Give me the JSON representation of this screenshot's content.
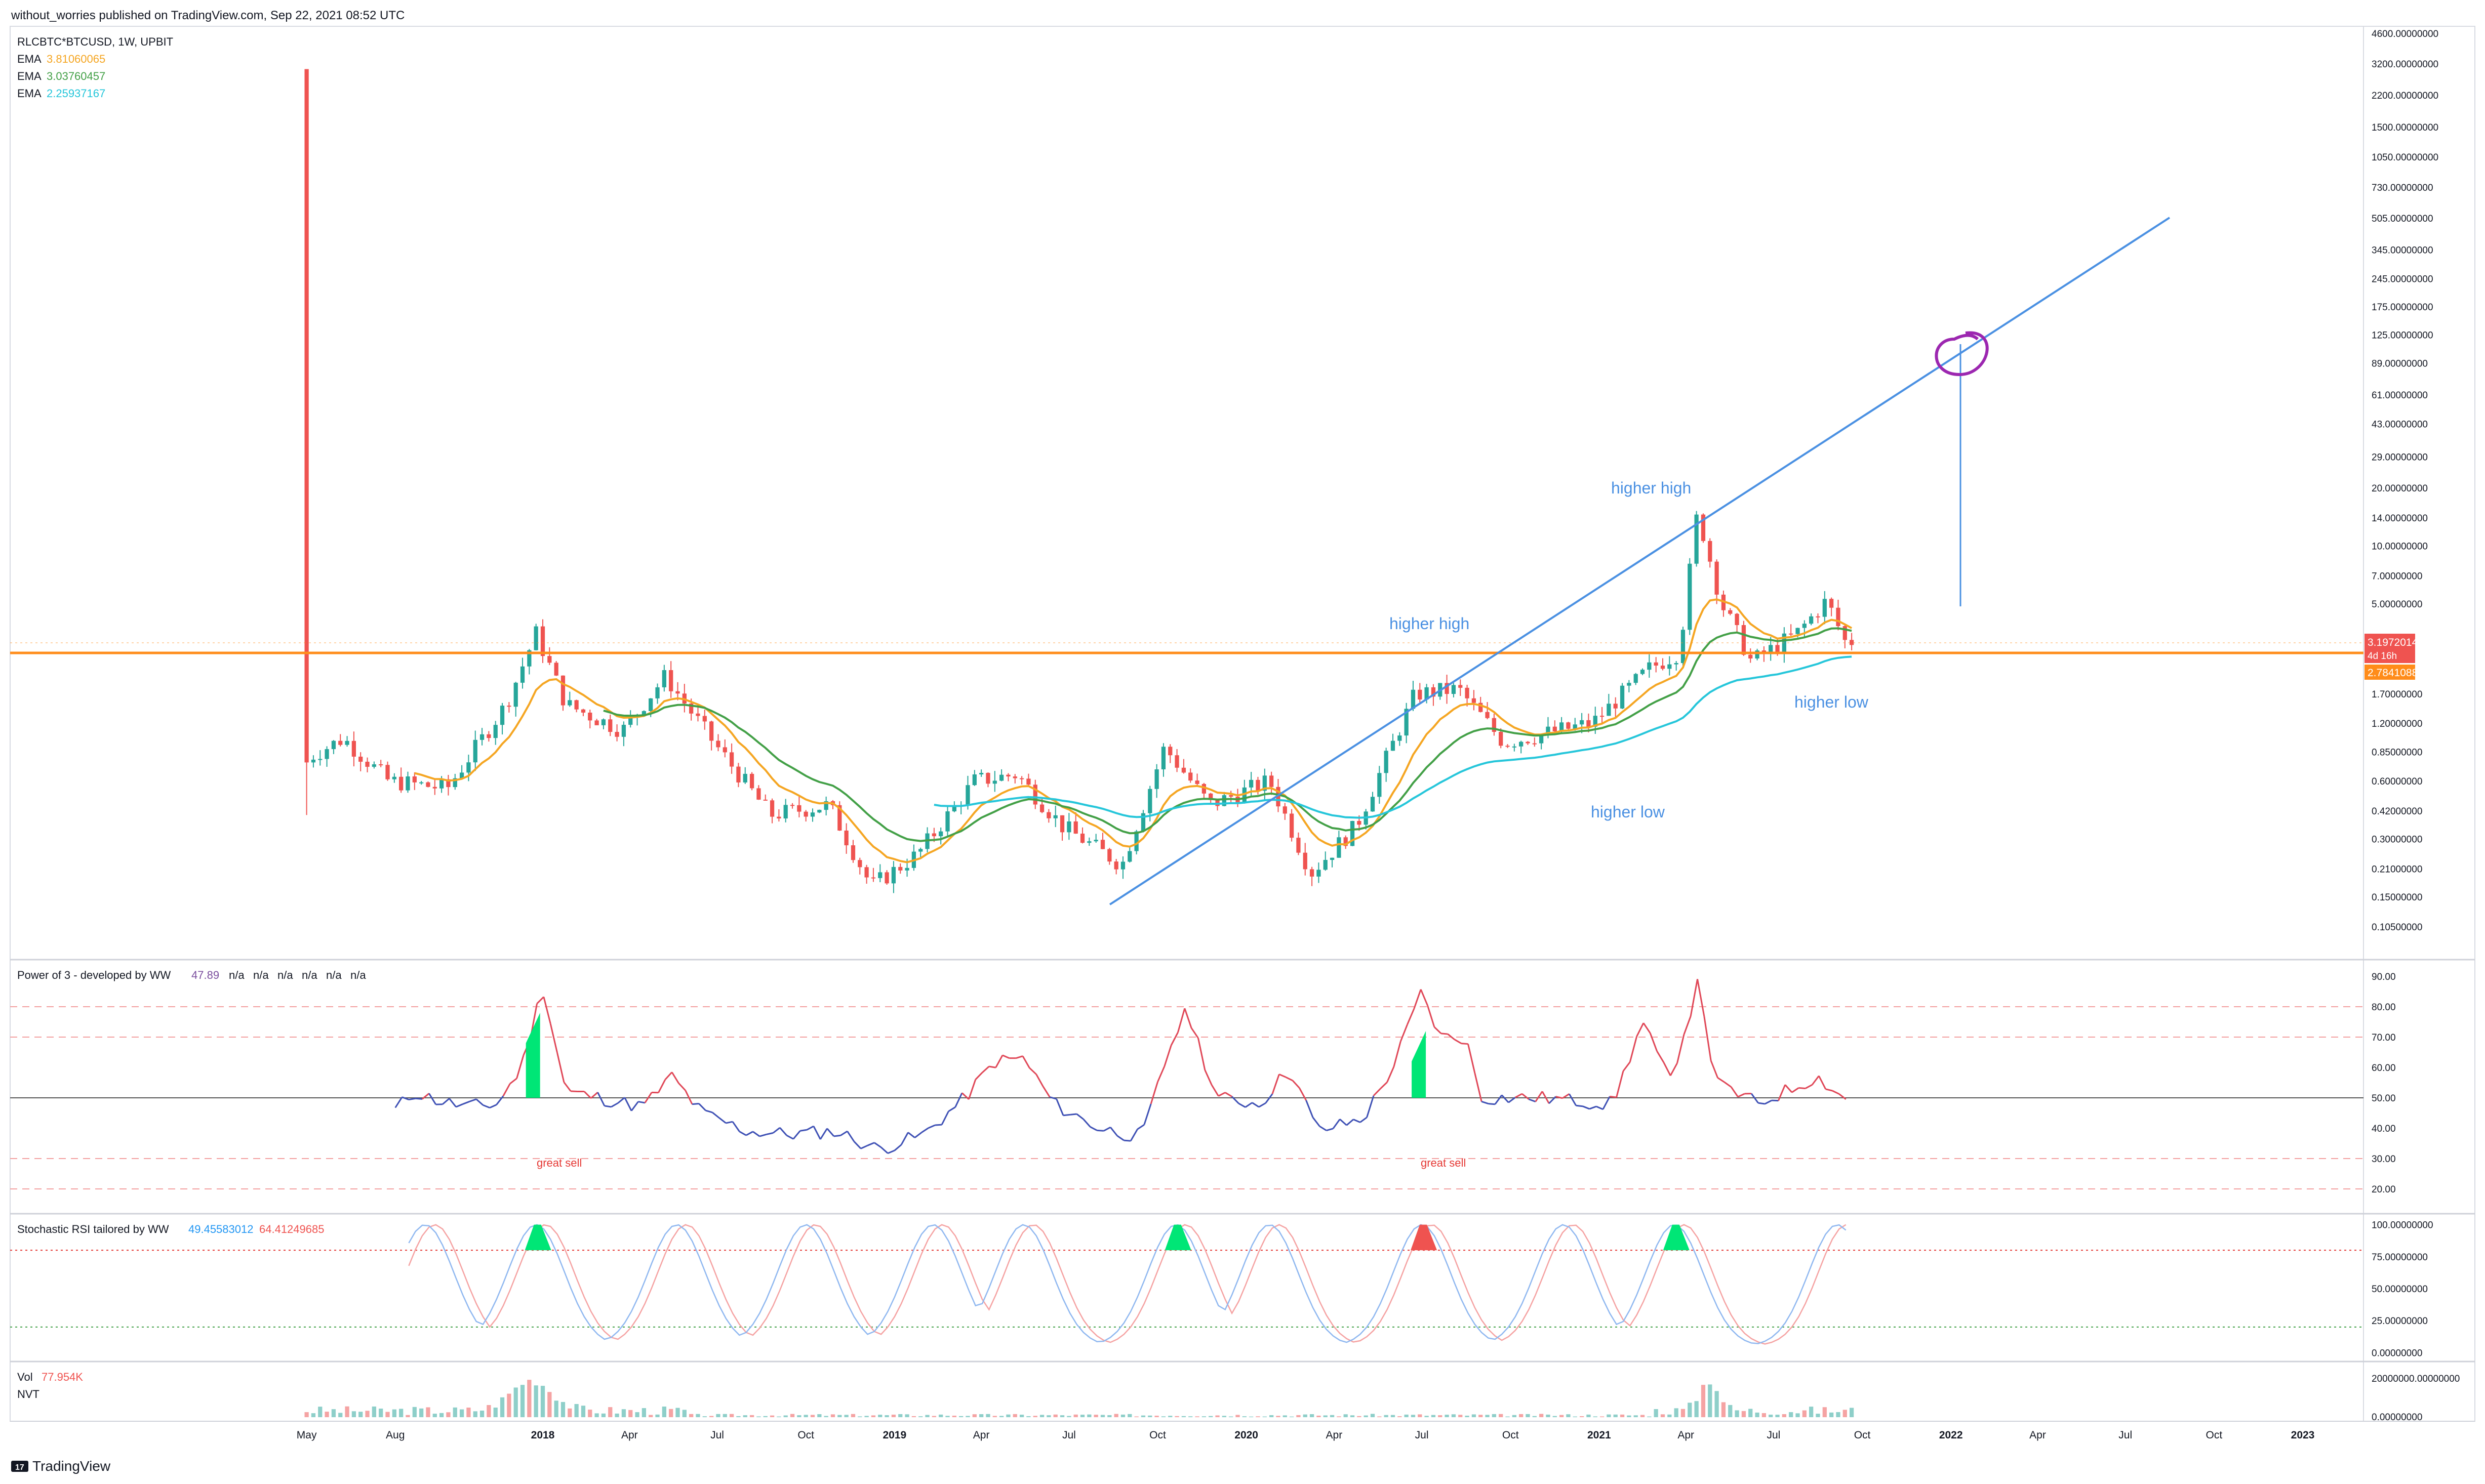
{
  "header": {
    "publish_line": "without_worries published on TradingView.com, Sep 22, 2021 08:52 UTC"
  },
  "legend": {
    "symbol": "RLCBTC*BTCUSD, 1W, UPBIT",
    "ema": [
      {
        "label": "EMA",
        "value": "3.81060065",
        "color": "#f5a623"
      },
      {
        "label": "EMA",
        "value": "3.03760457",
        "color": "#43a047"
      },
      {
        "label": "EMA",
        "value": "2.25937167",
        "color": "#26c6da"
      }
    ]
  },
  "colors": {
    "up": "#26a69a",
    "down": "#ef5350",
    "orange": "#ff8c1a",
    "blue": "#4a90e2",
    "purple": "#9c27b0",
    "pane_line": "#7b4f9e"
  },
  "chart_data": [
    {
      "type": "candlestick",
      "scale": "log",
      "ylim": [
        0.08,
        4600
      ],
      "x_tick_labels": [
        "May",
        "Aug",
        "2018",
        "Apr",
        "Jul",
        "Oct",
        "2019",
        "Apr",
        "Jul",
        "Oct",
        "2020",
        "Apr",
        "Jul",
        "Oct",
        "2021",
        "Apr",
        "Jul",
        "Oct",
        "2022",
        "Apr",
        "Jul",
        "Oct",
        "2023"
      ],
      "y_tick_labels": [
        "4600.00000000",
        "3200.00000000",
        "2200.00000000",
        "1500.00000000",
        "1050.00000000",
        "730.00000000",
        "505.00000000",
        "345.00000000",
        "245.00000000",
        "175.00000000",
        "125.00000000",
        "89.00000000",
        "61.00000000",
        "43.00000000",
        "29.00000000",
        "20.00000000",
        "14.00000000",
        "10.00000000",
        "7.00000000",
        "5.00000000",
        "1.70000000",
        "1.20000000",
        "0.85000000",
        "0.60000000",
        "0.42000000",
        "0.30000000",
        "0.21000000",
        "0.15000000",
        "0.10500000"
      ],
      "price_labels": [
        {
          "value": "3.19720143",
          "sub": "4d 16h",
          "color": "#ef5350"
        },
        {
          "value": "2.78410885",
          "color": "#ff8c1a"
        }
      ],
      "horizontal_level": 2.78,
      "annotations": [
        "higher high",
        "higher high",
        "higher low",
        "higher low"
      ],
      "price_path": [
        {
          "x": "2017-05-01",
          "y": 0.75
        },
        {
          "x": "2017-06-15",
          "y": 1.0
        },
        {
          "x": "2017-08-01",
          "y": 0.6
        },
        {
          "x": "2017-10-01",
          "y": 0.55
        },
        {
          "x": "2017-12-01",
          "y": 1.5
        },
        {
          "x": "2018-01-01",
          "y": 3.5
        },
        {
          "x": "2018-02-01",
          "y": 1.5
        },
        {
          "x": "2018-04-01",
          "y": 1.1
        },
        {
          "x": "2018-05-15",
          "y": 2.1
        },
        {
          "x": "2018-07-01",
          "y": 1.0
        },
        {
          "x": "2018-09-01",
          "y": 0.4
        },
        {
          "x": "2018-11-01",
          "y": 0.45
        },
        {
          "x": "2018-12-15",
          "y": 0.17
        },
        {
          "x": "2019-02-01",
          "y": 0.25
        },
        {
          "x": "2019-04-01",
          "y": 0.6
        },
        {
          "x": "2019-05-15",
          "y": 0.65
        },
        {
          "x": "2019-07-01",
          "y": 0.35
        },
        {
          "x": "2019-09-01",
          "y": 0.22
        },
        {
          "x": "2019-10-15",
          "y": 0.9
        },
        {
          "x": "2019-12-01",
          "y": 0.45
        },
        {
          "x": "2020-02-01",
          "y": 0.6
        },
        {
          "x": "2020-03-15",
          "y": 0.2
        },
        {
          "x": "2020-05-01",
          "y": 0.35
        },
        {
          "x": "2020-07-01",
          "y": 1.7
        },
        {
          "x": "2020-08-15",
          "y": 1.8
        },
        {
          "x": "2020-10-01",
          "y": 0.95
        },
        {
          "x": "2021-01-01",
          "y": 1.2
        },
        {
          "x": "2021-03-01",
          "y": 2.3
        },
        {
          "x": "2021-04-01",
          "y": 2.8
        },
        {
          "x": "2021-04-20",
          "y": 15.0
        },
        {
          "x": "2021-05-15",
          "y": 5.0
        },
        {
          "x": "2021-06-15",
          "y": 2.5
        },
        {
          "x": "2021-08-01",
          "y": 3.5
        },
        {
          "x": "2021-09-01",
          "y": 5.2
        },
        {
          "x": "2021-09-20",
          "y": 3.2
        }
      ]
    },
    {
      "type": "line",
      "title": "Power of 3 - developed by WW",
      "header_values": [
        "47.89",
        "n/a",
        "n/a",
        "n/a",
        "n/a",
        "n/a",
        "n/a"
      ],
      "ylim": [
        16,
        92
      ],
      "y_tick_labels": [
        "90.00",
        "80.00",
        "70.00",
        "60.00",
        "50.00",
        "40.00",
        "30.00",
        "20.00"
      ],
      "levels": [
        80,
        70,
        50,
        30,
        20
      ],
      "annotations": [
        "great sell",
        "great sell"
      ],
      "values": [
        {
          "x": "2017-08-01",
          "y": 46
        },
        {
          "x": "2017-08-20",
          "y": 52
        },
        {
          "x": "2017-09-15",
          "y": 49
        },
        {
          "x": "2017-10-15",
          "y": 47
        },
        {
          "x": "2017-11-15",
          "y": 48
        },
        {
          "x": "2017-12-10",
          "y": 60
        },
        {
          "x": "2018-01-01",
          "y": 87
        },
        {
          "x": "2018-01-25",
          "y": 52
        },
        {
          "x": "2018-03-01",
          "y": 50
        },
        {
          "x": "2018-04-15",
          "y": 47
        },
        {
          "x": "2018-05-15",
          "y": 57
        },
        {
          "x": "2018-06-15",
          "y": 45
        },
        {
          "x": "2018-08-01",
          "y": 39
        },
        {
          "x": "2018-09-15",
          "y": 38
        },
        {
          "x": "2018-11-01",
          "y": 39
        },
        {
          "x": "2018-12-15",
          "y": 33
        },
        {
          "x": "2019-02-01",
          "y": 38
        },
        {
          "x": "2019-03-15",
          "y": 50
        },
        {
          "x": "2019-04-15",
          "y": 62
        },
        {
          "x": "2019-05-15",
          "y": 63
        },
        {
          "x": "2019-06-15",
          "y": 48
        },
        {
          "x": "2019-08-01",
          "y": 40
        },
        {
          "x": "2019-09-15",
          "y": 37
        },
        {
          "x": "2019-10-15",
          "y": 68
        },
        {
          "x": "2019-11-01",
          "y": 79
        },
        {
          "x": "2019-12-01",
          "y": 50
        },
        {
          "x": "2020-01-15",
          "y": 48
        },
        {
          "x": "2020-02-15",
          "y": 60
        },
        {
          "x": "2020-03-15",
          "y": 39
        },
        {
          "x": "2020-05-01",
          "y": 43
        },
        {
          "x": "2020-06-01",
          "y": 60
        },
        {
          "x": "2020-07-01",
          "y": 85
        },
        {
          "x": "2020-07-20",
          "y": 70
        },
        {
          "x": "2020-08-15",
          "y": 70
        },
        {
          "x": "2020-09-01",
          "y": 50
        },
        {
          "x": "2020-11-01",
          "y": 50
        },
        {
          "x": "2021-01-15",
          "y": 48
        },
        {
          "x": "2021-02-15",
          "y": 75
        },
        {
          "x": "2021-03-15",
          "y": 55
        },
        {
          "x": "2021-04-15",
          "y": 89
        },
        {
          "x": "2021-05-01",
          "y": 55
        },
        {
          "x": "2021-06-15",
          "y": 48
        },
        {
          "x": "2021-08-15",
          "y": 57
        },
        {
          "x": "2021-09-20",
          "y": 48
        }
      ]
    },
    {
      "type": "line",
      "title": "Stochastic RSI tailored by WW",
      "header_values": [
        "49.45583012",
        "64.41249685"
      ],
      "ylim": [
        -3,
        103
      ],
      "y_tick_labels": [
        "100.00000000",
        "75.00000000",
        "50.00000000",
        "25.00000000",
        "0.00000000"
      ],
      "levels": [
        80,
        20
      ],
      "peaks": [
        "2017-09-01",
        "2017-12-25",
        "2018-05-20",
        "2018-10-01",
        "2019-02-10",
        "2019-05-15",
        "2019-10-20",
        "2020-01-25",
        "2020-07-01",
        "2020-11-25",
        "2021-03-20",
        "2021-09-05"
      ]
    },
    {
      "type": "bar",
      "title": "Vol",
      "header_values": [
        "77.954K",
        "NVT"
      ],
      "y_tick_labels": [
        "20000000.00000000",
        "0.00000000"
      ]
    }
  ]
}
